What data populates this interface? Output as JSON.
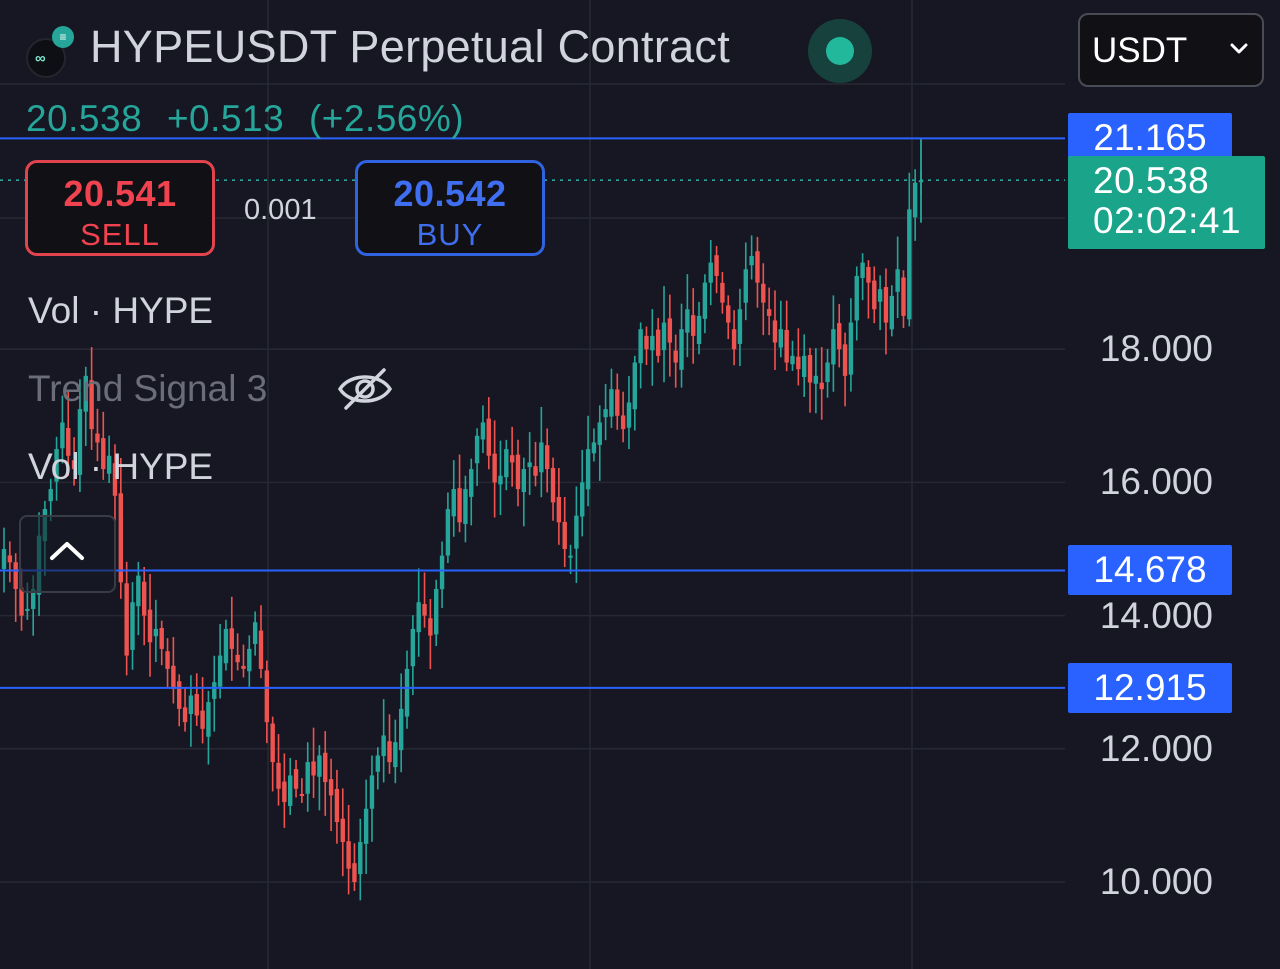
{
  "header": {
    "symbol_title": "HYPEUSDT Perpetual Contract"
  },
  "quote": {
    "last": "20.538",
    "change": "+0.513",
    "change_pct": "(+2.56%)"
  },
  "trade": {
    "sell_price": "20.541",
    "sell_label": "SELL",
    "spread": "0.001",
    "buy_price": "20.542",
    "buy_label": "BUY"
  },
  "indicators": [
    {
      "label": "Vol · HYPE",
      "hidden": false
    },
    {
      "label": "Trend Signal 3",
      "hidden": true
    },
    {
      "label": "Vol · HYPE",
      "hidden": false
    }
  ],
  "currency_select": {
    "value": "USDT"
  },
  "price_tag": {
    "price": "20.538",
    "countdown": "02:02:41"
  },
  "colors": {
    "background": "#161722",
    "up": "#26a69a",
    "down": "#ef5350",
    "hline": "#2962ff",
    "sell": "#f0434f",
    "buy": "#3f6ef0",
    "grid": "#262833"
  },
  "icons": {
    "eye": "eye-off-icon",
    "collapse": "chevron-up-icon",
    "dropdown": "chevron-down-icon",
    "live": "live-dot-icon"
  },
  "chart_data": {
    "type": "candlestick",
    "y_axis": {
      "ticks": [
        "10.000",
        "12.000",
        "14.000",
        "16.000",
        "18.000"
      ],
      "range": [
        9.0,
        22.2
      ]
    },
    "horizontal_lines": [
      {
        "label": "21.165",
        "value": 21.165
      },
      {
        "label": "14.678",
        "value": 14.678
      },
      {
        "label": "12.915",
        "value": 12.915
      }
    ],
    "last_price": 20.538,
    "series": [
      {
        "name": "HYPEUSDT",
        "closes": [
          15.0,
          14.8,
          14.4,
          14.0,
          14.1,
          14.4,
          15.2,
          15.6,
          15.9,
          16.5,
          16.9,
          16.4,
          16.2,
          17.1,
          17.6,
          16.8,
          16.6,
          16.2,
          16.4,
          15.8,
          14.5,
          13.4,
          14.2,
          14.6,
          14.0,
          13.6,
          13.8,
          13.5,
          13.2,
          12.9,
          12.6,
          12.4,
          12.8,
          12.5,
          12.3,
          12.7,
          13.0,
          13.4,
          13.8,
          13.5,
          13.3,
          13.2,
          13.5,
          13.9,
          13.2,
          12.4,
          11.8,
          11.4,
          11.2,
          11.6,
          11.4,
          11.3,
          11.8,
          11.6,
          11.9,
          11.5,
          11.3,
          10.9,
          10.6,
          10.2,
          10.0,
          10.6,
          11.1,
          11.6,
          11.9,
          12.2,
          11.8,
          12.1,
          12.6,
          13.2,
          13.8,
          14.2,
          14.0,
          13.7,
          14.4,
          14.9,
          15.6,
          15.9,
          15.4,
          15.9,
          16.2,
          16.7,
          16.9,
          16.4,
          16.0,
          16.1,
          16.5,
          16.3,
          15.9,
          16.2,
          16.3,
          16.1,
          16.6,
          16.2,
          15.7,
          15.4,
          15.0,
          14.9,
          15.5,
          16.0,
          16.5,
          16.6,
          16.9,
          17.1,
          17.4,
          17.0,
          16.8,
          17.2,
          17.8,
          18.3,
          18.0,
          18.2,
          17.9,
          18.4,
          18.1,
          17.8,
          18.3,
          18.6,
          18.2,
          18.5,
          19.0,
          19.3,
          19.1,
          18.7,
          18.4,
          18.0,
          18.6,
          19.2,
          19.4,
          19.0,
          18.7,
          18.5,
          18.1,
          18.3,
          17.8,
          17.9,
          17.7,
          17.9,
          17.5,
          17.6,
          17.4,
          17.8,
          18.3,
          18.0,
          17.6,
          18.4,
          19.1,
          19.3,
          19.0,
          18.6,
          18.9,
          18.4,
          18.8,
          19.2,
          18.5,
          20.1,
          20.5,
          20.538
        ]
      }
    ]
  }
}
